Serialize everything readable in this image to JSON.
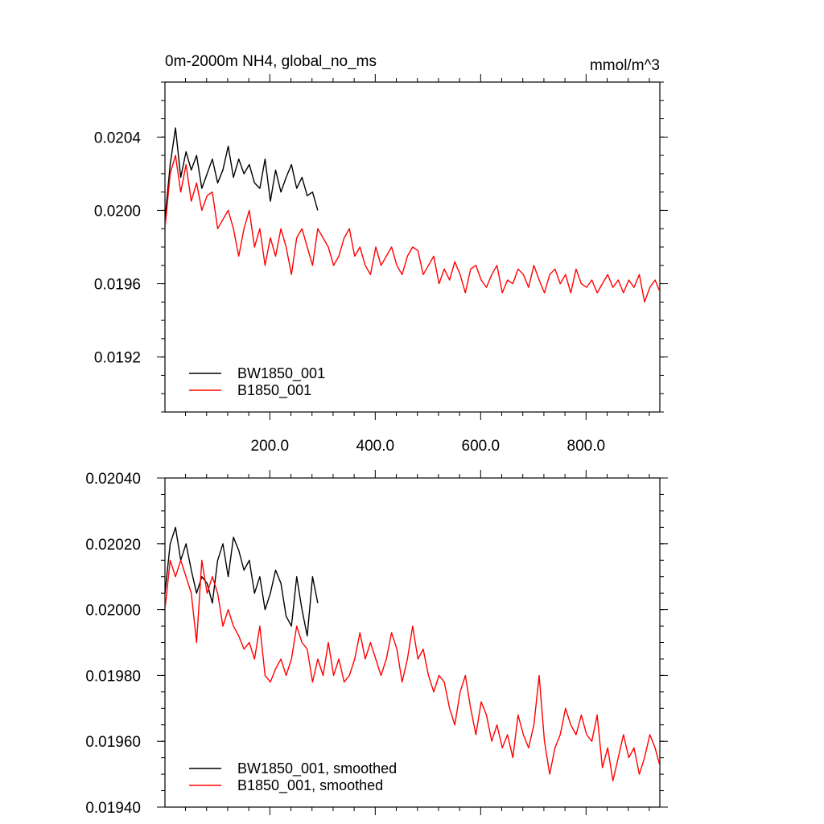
{
  "chart_data": [
    {
      "type": "line",
      "title_left": "0m-2000m NH4, global_no_ms",
      "title_right": "mmol/m^3",
      "xlim": [
        1,
        940
      ],
      "ylim": [
        0.0189,
        0.0207
      ],
      "xticks": [
        200,
        400,
        600,
        800
      ],
      "xtick_labels": [
        "200.0",
        "400.0",
        "600.0",
        "800.0"
      ],
      "yticks": [
        0.0192,
        0.0196,
        0.02,
        0.0204
      ],
      "ytick_labels": [
        "0.0192",
        "0.0196",
        "0.0200",
        "0.0204"
      ],
      "grid": false,
      "legend_position": "bottom-left",
      "series": [
        {
          "name": "BW1850_001",
          "color": "#000000",
          "x_start": 1,
          "x_step": 10,
          "values": [
            0.01995,
            0.02025,
            0.02045,
            0.02018,
            0.02032,
            0.02022,
            0.0203,
            0.02012,
            0.0202,
            0.02028,
            0.02015,
            0.02022,
            0.02035,
            0.02018,
            0.02028,
            0.0202,
            0.02025,
            0.02015,
            0.02012,
            0.02028,
            0.02005,
            0.02022,
            0.0201,
            0.02018,
            0.02025,
            0.02012,
            0.02018,
            0.02008,
            0.0201,
            0.02
          ]
        },
        {
          "name": "B1850_001",
          "color": "#ff0000",
          "x_start": 1,
          "x_step": 10,
          "values": [
            0.0199,
            0.0202,
            0.0203,
            0.0201,
            0.02025,
            0.02005,
            0.02015,
            0.02,
            0.02008,
            0.0201,
            0.0199,
            0.01995,
            0.02,
            0.0199,
            0.01975,
            0.0199,
            0.02,
            0.0198,
            0.0199,
            0.0197,
            0.01985,
            0.01975,
            0.0199,
            0.0198,
            0.01965,
            0.01985,
            0.0199,
            0.0198,
            0.0197,
            0.0199,
            0.01985,
            0.0198,
            0.0197,
            0.01975,
            0.01985,
            0.0199,
            0.01975,
            0.0198,
            0.0197,
            0.01965,
            0.0198,
            0.0197,
            0.01975,
            0.0198,
            0.0197,
            0.01965,
            0.01975,
            0.0198,
            0.01978,
            0.01965,
            0.0197,
            0.01975,
            0.0196,
            0.01968,
            0.01962,
            0.01972,
            0.01965,
            0.01955,
            0.01968,
            0.0197,
            0.01962,
            0.01958,
            0.01965,
            0.0197,
            0.01955,
            0.01962,
            0.0196,
            0.01968,
            0.01965,
            0.01958,
            0.0197,
            0.01962,
            0.01955,
            0.01965,
            0.01968,
            0.0196,
            0.01965,
            0.01955,
            0.01968,
            0.0196,
            0.01958,
            0.01962,
            0.01955,
            0.0196,
            0.01965,
            0.01958,
            0.01962,
            0.01955,
            0.01962,
            0.01958,
            0.01965,
            0.0195,
            0.01958,
            0.01962,
            0.01955
          ]
        }
      ]
    },
    {
      "type": "line",
      "xlim": [
        1,
        940
      ],
      "ylim": [
        0.0194,
        0.0204
      ],
      "xticks": [
        200,
        400,
        600,
        800
      ],
      "yticks": [
        0.0194,
        0.0196,
        0.0198,
        0.02,
        0.0202,
        0.0204
      ],
      "ytick_labels": [
        "0.01940",
        "0.01960",
        "0.01980",
        "0.02000",
        "0.02020",
        "0.02040"
      ],
      "grid": false,
      "legend_position": "bottom-left",
      "series": [
        {
          "name": "BW1850_001, smoothed",
          "color": "#000000",
          "x_start": 1,
          "x_step": 10,
          "values": [
            0.02005,
            0.0202,
            0.02025,
            0.02015,
            0.0202,
            0.02012,
            0.02005,
            0.0201,
            0.02008,
            0.02002,
            0.02015,
            0.0202,
            0.0201,
            0.02022,
            0.02018,
            0.02012,
            0.02015,
            0.02005,
            0.0201,
            0.02,
            0.02005,
            0.02012,
            0.02008,
            0.01998,
            0.01995,
            0.0201,
            0.02,
            0.01992,
            0.0201,
            0.02002
          ]
        },
        {
          "name": "B1850_001, smoothed",
          "color": "#ff0000",
          "x_start": 1,
          "x_step": 10,
          "values": [
            0.02,
            0.02015,
            0.0201,
            0.02015,
            0.0201,
            0.02005,
            0.0199,
            0.02015,
            0.02005,
            0.0201,
            0.02005,
            0.01995,
            0.02,
            0.01995,
            0.01992,
            0.01988,
            0.0199,
            0.01985,
            0.01995,
            0.0198,
            0.01978,
            0.01982,
            0.01985,
            0.0198,
            0.01985,
            0.01995,
            0.0199,
            0.01988,
            0.01978,
            0.01985,
            0.0198,
            0.0199,
            0.0198,
            0.01985,
            0.01978,
            0.0198,
            0.01985,
            0.01993,
            0.01985,
            0.0199,
            0.01985,
            0.0198,
            0.01985,
            0.01993,
            0.01988,
            0.01978,
            0.01985,
            0.01995,
            0.01985,
            0.01988,
            0.0198,
            0.01975,
            0.0198,
            0.01978,
            0.0197,
            0.01965,
            0.01975,
            0.0198,
            0.0197,
            0.01962,
            0.01972,
            0.01968,
            0.0196,
            0.01965,
            0.01958,
            0.01962,
            0.01955,
            0.01968,
            0.01962,
            0.01958,
            0.01965,
            0.0198,
            0.0196,
            0.0195,
            0.01958,
            0.01962,
            0.0197,
            0.01965,
            0.01962,
            0.01968,
            0.01962,
            0.0196,
            0.01968,
            0.01952,
            0.01958,
            0.01948,
            0.01955,
            0.01962,
            0.01955,
            0.01958,
            0.0195,
            0.01955,
            0.01962,
            0.01958,
            0.01952
          ]
        }
      ]
    }
  ]
}
